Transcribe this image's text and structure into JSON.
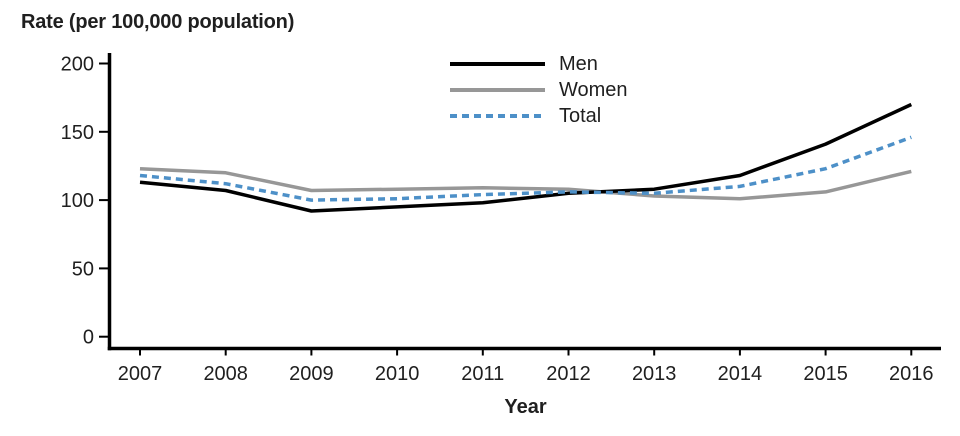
{
  "title": "Rate (per 100,000 population)",
  "colors": {
    "men_line": "#000000",
    "women_line": "#979797",
    "total_line": "#4d90c8",
    "axis": "#000000",
    "text": "#1f1f1f"
  },
  "axis": {
    "xlabel": "Year",
    "x_tick_labels": [
      "2007",
      "2008",
      "2009",
      "2010",
      "2011",
      "2012",
      "2013",
      "2014",
      "2015",
      "2016"
    ],
    "y_tick_labels": [
      "0",
      "50",
      "100",
      "150",
      "200"
    ]
  },
  "chart_data": {
    "type": "line",
    "title": "Rate (per 100,000 population)",
    "xlabel": "Year",
    "ylabel": "Rate (per 100,000 population)",
    "x": [
      2007,
      2008,
      2009,
      2010,
      2011,
      2012,
      2013,
      2014,
      2015,
      2016
    ],
    "series": [
      {
        "name": "Men",
        "color": "#000000",
        "line_style": "solid",
        "values": [
          113,
          107,
          92,
          95,
          98,
          105,
          108,
          118,
          141,
          170
        ]
      },
      {
        "name": "Women",
        "color": "#979797",
        "line_style": "solid",
        "values": [
          123,
          120,
          107,
          108,
          109,
          108,
          103,
          101,
          106,
          121
        ]
      },
      {
        "name": "Total",
        "color": "#4d90c8",
        "line_style": "dashed",
        "values": [
          118,
          112,
          100,
          101,
          104,
          106,
          105,
          110,
          123,
          146
        ]
      }
    ],
    "ylim": [
      0,
      200
    ],
    "yticks": [
      0,
      50,
      100,
      150,
      200
    ],
    "grid": false,
    "legend_position": "top-center"
  }
}
